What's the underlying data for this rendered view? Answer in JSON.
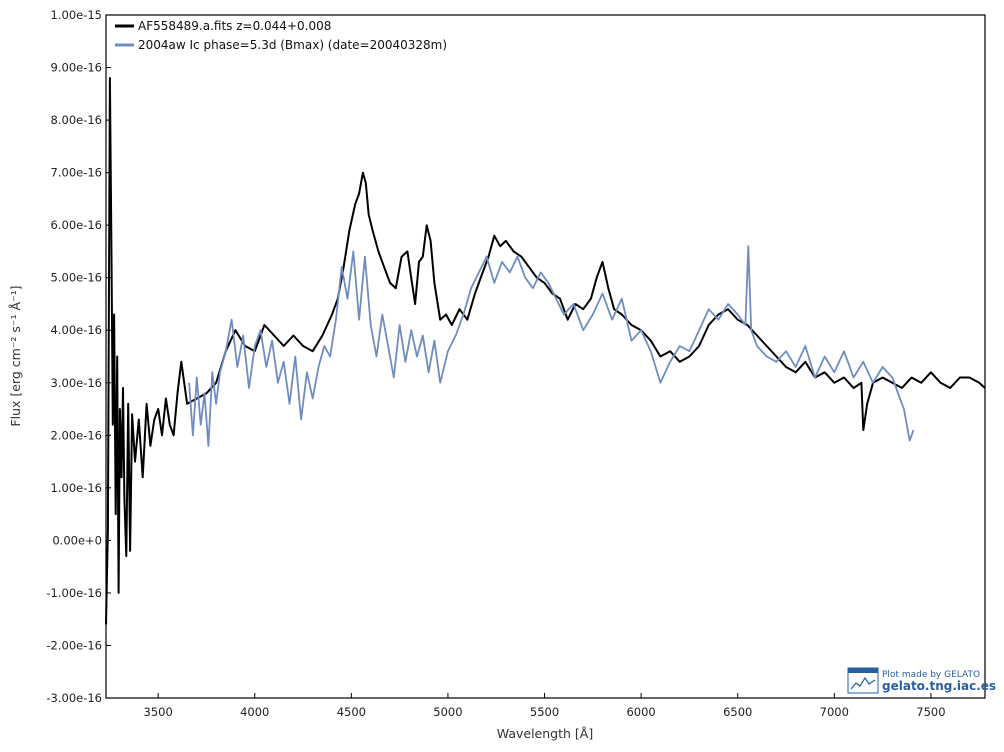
{
  "chart_data": {
    "type": "line",
    "title": "",
    "xlabel": "Wavelength [Å]",
    "ylabel": "Flux [erg cm⁻² s⁻¹ Å⁻¹]",
    "xlim": [
      3230,
      7780
    ],
    "ylim": [
      -3e-16,
      1e-15
    ],
    "x_ticks": [
      3500,
      4000,
      4500,
      5000,
      5500,
      6000,
      6500,
      7000,
      7500
    ],
    "x_tick_labels": [
      "3500",
      "4000",
      "4500",
      "5000",
      "5500",
      "6000",
      "6500",
      "7000",
      "7500"
    ],
    "y_ticks": [
      -3e-16,
      -2e-16,
      -1e-16,
      0,
      1e-16,
      2e-16,
      3e-16,
      4e-16,
      5e-16,
      6e-16,
      7e-16,
      8e-16,
      9e-16,
      1e-15
    ],
    "y_tick_labels": [
      "-3.00e-16",
      "-2.00e-16",
      "-1.00e-16",
      "0.00e+0",
      "1.00e-16",
      "2.00e-16",
      "3.00e-16",
      "4.00e-16",
      "5.00e-16",
      "6.00e-16",
      "7.00e-16",
      "8.00e-16",
      "9.00e-16",
      "1.00e-15"
    ],
    "grid": false,
    "legend_position": "top-left",
    "series": [
      {
        "name": "AF558489.a.fits  z=0.044+0.008",
        "color": "#000000",
        "x": [
          3230,
          3240,
          3250,
          3258,
          3265,
          3272,
          3280,
          3288,
          3295,
          3302,
          3310,
          3318,
          3325,
          3335,
          3345,
          3355,
          3365,
          3380,
          3400,
          3420,
          3440,
          3460,
          3480,
          3500,
          3520,
          3540,
          3560,
          3580,
          3600,
          3620,
          3650,
          3700,
          3750,
          3800,
          3850,
          3900,
          3950,
          4000,
          4050,
          4100,
          4150,
          4200,
          4250,
          4300,
          4350,
          4400,
          4430,
          4460,
          4490,
          4520,
          4540,
          4560,
          4575,
          4590,
          4610,
          4640,
          4670,
          4700,
          4730,
          4760,
          4790,
          4810,
          4830,
          4850,
          4870,
          4890,
          4910,
          4930,
          4960,
          4990,
          5020,
          5060,
          5100,
          5140,
          5180,
          5210,
          5240,
          5270,
          5300,
          5340,
          5380,
          5420,
          5460,
          5500,
          5540,
          5580,
          5620,
          5660,
          5700,
          5740,
          5770,
          5800,
          5830,
          5860,
          5900,
          5950,
          6000,
          6050,
          6100,
          6150,
          6200,
          6250,
          6300,
          6350,
          6400,
          6450,
          6500,
          6550,
          6600,
          6650,
          6700,
          6750,
          6800,
          6850,
          6900,
          6950,
          7000,
          7050,
          7100,
          7140,
          7150,
          7170,
          7200,
          7250,
          7300,
          7350,
          7400,
          7450,
          7500,
          7550,
          7600,
          7650,
          7700,
          7750,
          7780
        ],
        "y": [
          -1.6e-16,
          2e-17,
          8.8e-16,
          5.6e-16,
          2.2e-16,
          4.3e-16,
          5e-17,
          3.5e-16,
          -1e-16,
          2.5e-16,
          1.2e-16,
          2.9e-16,
          8e-17,
          -3e-17,
          2.6e-16,
          -2e-17,
          2.4e-16,
          1.5e-16,
          2.3e-16,
          1.2e-16,
          2.6e-16,
          1.8e-16,
          2.3e-16,
          2.5e-16,
          2e-16,
          2.7e-16,
          2.2e-16,
          2e-16,
          2.8e-16,
          3.4e-16,
          2.6e-16,
          2.7e-16,
          2.8e-16,
          3e-16,
          3.6e-16,
          4e-16,
          3.7e-16,
          3.6e-16,
          4.1e-16,
          3.9e-16,
          3.7e-16,
          3.9e-16,
          3.7e-16,
          3.6e-16,
          3.9e-16,
          4.3e-16,
          4.6e-16,
          5.2e-16,
          5.9e-16,
          6.4e-16,
          6.6e-16,
          7e-16,
          6.8e-16,
          6.2e-16,
          5.9e-16,
          5.5e-16,
          5.2e-16,
          4.9e-16,
          4.8e-16,
          5.4e-16,
          5.5e-16,
          5e-16,
          4.5e-16,
          5.3e-16,
          5.4e-16,
          6e-16,
          5.7e-16,
          4.9e-16,
          4.2e-16,
          4.3e-16,
          4.1e-16,
          4.4e-16,
          4.2e-16,
          4.7e-16,
          5.1e-16,
          5.4e-16,
          5.8e-16,
          5.6e-16,
          5.7e-16,
          5.5e-16,
          5.4e-16,
          5.2e-16,
          5e-16,
          4.9e-16,
          4.7e-16,
          4.6e-16,
          4.2e-16,
          4.5e-16,
          4.4e-16,
          4.6e-16,
          5e-16,
          5.3e-16,
          4.8e-16,
          4.4e-16,
          4.3e-16,
          4.1e-16,
          4e-16,
          3.8e-16,
          3.5e-16,
          3.6e-16,
          3.4e-16,
          3.5e-16,
          3.7e-16,
          4.1e-16,
          4.3e-16,
          4.4e-16,
          4.2e-16,
          4.1e-16,
          3.9e-16,
          3.7e-16,
          3.5e-16,
          3.3e-16,
          3.2e-16,
          3.4e-16,
          3.1e-16,
          3.2e-16,
          3e-16,
          3.1e-16,
          2.9e-16,
          3e-16,
          2.1e-16,
          2.6e-16,
          3e-16,
          3.1e-16,
          3e-16,
          2.9e-16,
          3.1e-16,
          3e-16,
          3.2e-16,
          3e-16,
          2.9e-16,
          3.1e-16,
          3.1e-16,
          3e-16,
          2.9e-16
        ]
      },
      {
        "name": "2004aw  Ic  phase=5.3d (Bmax)  (date=20040328m)",
        "color": "#6f8dc0",
        "x": [
          3660,
          3680,
          3700,
          3720,
          3740,
          3760,
          3780,
          3800,
          3820,
          3850,
          3880,
          3910,
          3940,
          3970,
          4000,
          4030,
          4060,
          4090,
          4120,
          4150,
          4180,
          4210,
          4240,
          4270,
          4300,
          4330,
          4360,
          4390,
          4420,
          4450,
          4480,
          4510,
          4540,
          4570,
          4600,
          4630,
          4660,
          4690,
          4720,
          4750,
          4780,
          4810,
          4840,
          4870,
          4900,
          4930,
          4960,
          5000,
          5040,
          5080,
          5120,
          5160,
          5200,
          5240,
          5280,
          5320,
          5360,
          5400,
          5440,
          5480,
          5520,
          5560,
          5600,
          5650,
          5700,
          5750,
          5800,
          5850,
          5900,
          5950,
          6000,
          6050,
          6100,
          6150,
          6200,
          6250,
          6300,
          6350,
          6400,
          6450,
          6500,
          6540,
          6555,
          6570,
          6600,
          6650,
          6700,
          6750,
          6800,
          6850,
          6900,
          6950,
          7000,
          7050,
          7100,
          7150,
          7200,
          7250,
          7300,
          7330,
          7360,
          7390,
          7410
        ],
        "y": [
          3e-16,
          2e-16,
          3.1e-16,
          2.2e-16,
          2.8e-16,
          1.8e-16,
          3.2e-16,
          2.6e-16,
          3.2e-16,
          3.6e-16,
          4.2e-16,
          3.3e-16,
          3.9e-16,
          2.9e-16,
          3.7e-16,
          4e-16,
          3.3e-16,
          3.8e-16,
          3e-16,
          3.4e-16,
          2.6e-16,
          3.5e-16,
          2.3e-16,
          3.2e-16,
          2.7e-16,
          3.3e-16,
          3.7e-16,
          3.5e-16,
          4.2e-16,
          5.2e-16,
          4.6e-16,
          5.5e-16,
          4.2e-16,
          5.4e-16,
          4.1e-16,
          3.5e-16,
          4.3e-16,
          3.7e-16,
          3.1e-16,
          4.1e-16,
          3.4e-16,
          4e-16,
          3.5e-16,
          3.9e-16,
          3.2e-16,
          3.8e-16,
          3e-16,
          3.6e-16,
          3.9e-16,
          4.3e-16,
          4.8e-16,
          5.1e-16,
          5.4e-16,
          4.9e-16,
          5.3e-16,
          5.1e-16,
          5.4e-16,
          5e-16,
          4.8e-16,
          5.1e-16,
          4.9e-16,
          4.6e-16,
          4.3e-16,
          4.5e-16,
          4e-16,
          4.3e-16,
          4.7e-16,
          4.2e-16,
          4.6e-16,
          3.8e-16,
          4e-16,
          3.6e-16,
          3e-16,
          3.4e-16,
          3.7e-16,
          3.6e-16,
          4e-16,
          4.4e-16,
          4.2e-16,
          4.5e-16,
          4.3e-16,
          4.1e-16,
          5.6e-16,
          4e-16,
          3.7e-16,
          3.5e-16,
          3.4e-16,
          3.6e-16,
          3.3e-16,
          3.7e-16,
          3.1e-16,
          3.5e-16,
          3.2e-16,
          3.6e-16,
          3.1e-16,
          3.4e-16,
          3e-16,
          3.3e-16,
          3.1e-16,
          2.8e-16,
          2.5e-16,
          1.9e-16,
          2.1e-16
        ]
      }
    ]
  },
  "credit": {
    "made_by": "Plot made by GELATO",
    "site": "gelato.tng.iac.es"
  }
}
